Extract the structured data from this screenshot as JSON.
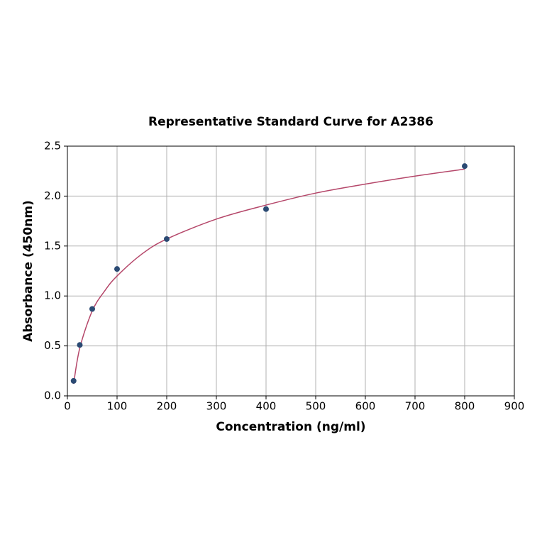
{
  "chart_data": {
    "type": "scatter",
    "title": "Representative Standard Curve for A2386",
    "x_label": "Concentration (ng/ml)",
    "y_label": "Absorbance (450nm)",
    "series": [
      {
        "style": "markers",
        "color": "#2b4a73",
        "x": [
          12.5,
          25,
          50,
          100,
          200,
          400,
          800
        ],
        "values": [
          0.15,
          0.51,
          0.87,
          1.27,
          1.57,
          1.87,
          2.3
        ]
      },
      {
        "style": "line",
        "color": "#b5476a",
        "x": [
          12.5,
          25,
          50,
          75,
          100,
          150,
          200,
          300,
          400,
          500,
          600,
          700,
          800
        ],
        "values": [
          0.12,
          0.48,
          0.85,
          1.05,
          1.2,
          1.42,
          1.57,
          1.77,
          1.91,
          2.03,
          2.12,
          2.2,
          2.27
        ]
      }
    ],
    "xlim": [
      0,
      900
    ],
    "xticks": [
      0,
      100,
      200,
      300,
      400,
      500,
      600,
      700,
      800,
      900
    ],
    "ylim": [
      0,
      2.5
    ],
    "yticks": [
      {
        "value": 0,
        "label": "0.0"
      },
      0.5,
      {
        "value": 1,
        "label": "1.0"
      },
      1.5,
      {
        "value": 2,
        "label": "2.0"
      },
      2.5
    ],
    "grid": true
  }
}
